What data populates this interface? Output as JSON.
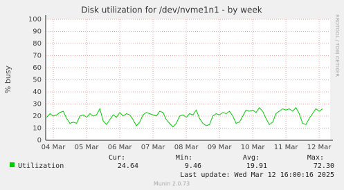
{
  "chart_data": {
    "type": "line",
    "title": "Disk utilization for /dev/nvme1n1 - by week",
    "y_label": "% busy",
    "side_label": "RRDTOOL / TOBI OETIKER",
    "x": [
      -0.2,
      -0.1,
      0.0,
      0.1,
      0.2,
      0.3,
      0.4,
      0.5,
      0.6,
      0.7,
      0.8,
      0.9,
      1.0,
      1.1,
      1.2,
      1.3,
      1.4,
      1.5,
      1.6,
      1.7,
      1.8,
      1.9,
      2.0,
      2.1,
      2.2,
      2.3,
      2.4,
      2.5,
      2.6,
      2.7,
      2.8,
      2.9,
      3.0,
      3.1,
      3.2,
      3.3,
      3.4,
      3.5,
      3.6,
      3.7,
      3.8,
      3.9,
      4.0,
      4.1,
      4.2,
      4.3,
      4.4,
      4.5,
      4.6,
      4.7,
      4.8,
      4.9,
      5.0,
      5.1,
      5.2,
      5.3,
      5.4,
      5.5,
      5.6,
      5.7,
      5.8,
      5.9,
      6.0,
      6.1,
      6.2,
      6.3,
      6.4,
      6.5,
      6.6,
      6.7,
      6.8,
      6.9,
      7.0,
      7.1,
      7.2,
      7.3,
      7.4,
      7.5,
      7.6,
      7.7,
      7.8,
      7.9,
      8.0,
      8.1
    ],
    "series": [
      {
        "name": "Utilization",
        "color": "#00cc00",
        "values": [
          19,
          22,
          20,
          21,
          23,
          24,
          18,
          14,
          15,
          14,
          20,
          21,
          19,
          22,
          20,
          21,
          26,
          16,
          13,
          17,
          21,
          19,
          23,
          20,
          22,
          21,
          17,
          12,
          15,
          21,
          23,
          22,
          21,
          20,
          24,
          23,
          17,
          14,
          11,
          14,
          20,
          21,
          19,
          22,
          21,
          25,
          18,
          14,
          12,
          13,
          20,
          22,
          21,
          23,
          22,
          24,
          20,
          14,
          15,
          20,
          25,
          24,
          25,
          23,
          27,
          24,
          18,
          13,
          15,
          22,
          24,
          26,
          25,
          26,
          24,
          27,
          22,
          14,
          13,
          18,
          22,
          26,
          24,
          26
        ]
      }
    ],
    "xlim": [
      -0.23,
      8.33
    ],
    "xticks": [
      {
        "value": 0,
        "label": "04 Mar"
      },
      {
        "value": 1,
        "label": "05 Mar"
      },
      {
        "value": 2,
        "label": "06 Mar"
      },
      {
        "value": 3,
        "label": "07 Mar"
      },
      {
        "value": 4,
        "label": "08 Mar"
      },
      {
        "value": 5,
        "label": "09 Mar"
      },
      {
        "value": 6,
        "label": "10 Mar"
      },
      {
        "value": 7,
        "label": "11 Mar"
      },
      {
        "value": 8,
        "label": "12 Mar"
      }
    ],
    "ylim": [
      0,
      100
    ],
    "yticks": [
      0,
      10,
      20,
      30,
      40,
      50,
      60,
      70,
      80,
      90,
      100
    ],
    "grid": true,
    "legend_stats": [
      {
        "name": "Cur:",
        "value": 24.64
      },
      {
        "name": "Min:",
        "value": 9.46
      },
      {
        "name": "Avg:",
        "value": 19.91
      },
      {
        "name": "Max:",
        "value": 72.3,
        "value_label": "72.30"
      }
    ],
    "last_update": "Last update: Wed Mar 12 16:00:16 2025",
    "footer": "Munin 2.0.73"
  }
}
